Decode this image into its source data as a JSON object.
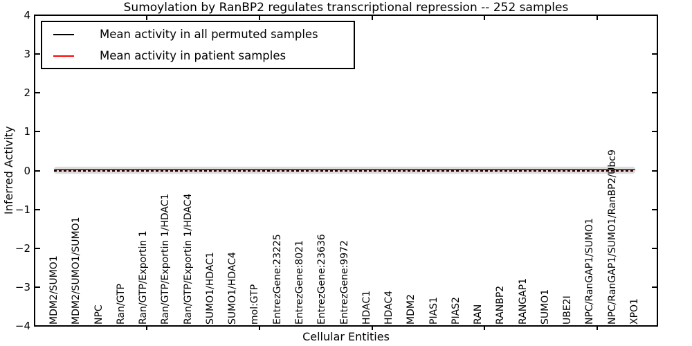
{
  "chart_data": {
    "type": "line",
    "title": "Sumoylation by RanBP2 regulates transcriptional repression -- 252 samples",
    "xlabel": "Cellular Entities",
    "ylabel": "Inferred Activity",
    "ylim": [
      -4,
      4
    ],
    "yticks": [
      "4",
      "3",
      "2",
      "1",
      "0",
      "−1",
      "−2",
      "−3",
      "−4"
    ],
    "grid": false,
    "legend_position": "upper left",
    "categories": [
      "MDM2/SUMO1",
      "MDM2/SUMO1/SUMO1",
      "NPC",
      "Ran/GTP",
      "Ran/GTP/Exportin 1",
      "Ran/GTP/Exportin 1/HDAC1",
      "Ran/GTP/Exportin 1/HDAC4",
      "SUMO1/HDAC1",
      "SUMO1/HDAC4",
      "mol:GTP",
      "EntrezGene:23225",
      "EntrezGene:8021",
      "EntrezGene:23636",
      "EntrezGene:9972",
      "HDAC1",
      "HDAC4",
      "MDM2",
      "PIAS1",
      "PIAS2",
      "RAN",
      "RANBP2",
      "RANGAP1",
      "SUMO1",
      "UBE2I",
      "NPC/RanGAP1/SUMO1",
      "NPC/RanGAP1/SUMO1/RanBP2/Ubc9",
      "XPO1"
    ],
    "series": [
      {
        "name": "Mean activity in all permuted samples",
        "color": "#000000",
        "values": [
          0.0,
          0.0,
          0.0,
          0.0,
          0.0,
          0.0,
          0.0,
          0.0,
          0.0,
          0.0,
          0.0,
          0.0,
          0.0,
          0.0,
          0.0,
          0.0,
          0.0,
          0.0,
          0.0,
          0.0,
          0.0,
          0.0,
          0.0,
          0.0,
          0.0,
          0.0,
          0.0
        ]
      },
      {
        "name": "Mean activity in patient samples",
        "color": "#ff0000",
        "values": [
          0.02,
          0.02,
          0.02,
          0.02,
          0.02,
          0.02,
          0.02,
          0.02,
          0.02,
          0.02,
          0.02,
          0.02,
          0.02,
          0.02,
          0.02,
          0.02,
          0.02,
          0.02,
          0.02,
          0.02,
          0.02,
          0.02,
          0.02,
          0.02,
          0.02,
          0.02,
          0.02
        ]
      }
    ],
    "permuted_band": {
      "color": "#dcdcdc",
      "halfwidth": 0.08
    }
  }
}
